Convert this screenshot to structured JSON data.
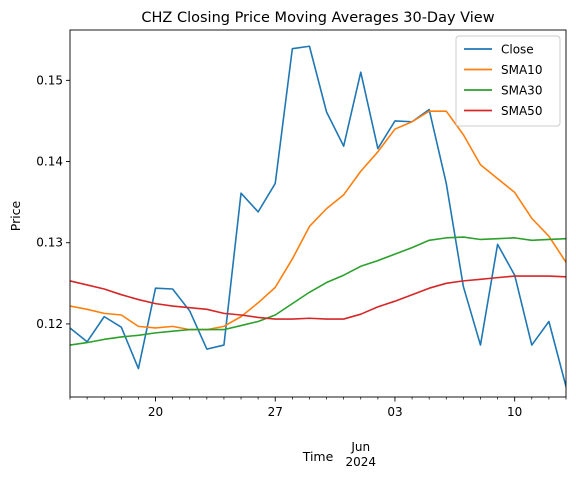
{
  "chart_data": {
    "type": "line",
    "title": "CHZ Closing Price Moving Averages 30-Day View",
    "xlabel": "Time",
    "ylabel": "Price",
    "x_range": [
      "2024-05-15",
      "2024-06-13"
    ],
    "ylim": [
      0.111,
      0.1562
    ],
    "grid": false,
    "legend_position": "top-right",
    "x_ticks_major": [
      {
        "date": "2024-05-20",
        "label": "20"
      },
      {
        "date": "2024-05-27",
        "label": "27"
      },
      {
        "date": "2024-06-03",
        "label": "03"
      },
      {
        "date": "2024-06-10",
        "label": "10"
      }
    ],
    "x_ticks_minor": [
      "2024-05-15",
      "2024-05-16",
      "2024-05-17",
      "2024-05-18",
      "2024-05-19",
      "2024-05-21",
      "2024-05-22",
      "2024-05-23",
      "2024-05-24",
      "2024-05-25",
      "2024-05-26",
      "2024-05-28",
      "2024-05-29",
      "2024-05-30",
      "2024-05-31",
      "2024-06-01",
      "2024-06-02",
      "2024-06-04",
      "2024-06-05",
      "2024-06-06",
      "2024-06-07",
      "2024-06-08",
      "2024-06-09",
      "2024-06-11",
      "2024-06-12",
      "2024-06-13"
    ],
    "x_secondary_label": {
      "date": "2024-06-01",
      "month": "Jun",
      "year": "2024"
    },
    "y_ticks": [
      0.12,
      0.13,
      0.14,
      0.15
    ],
    "y_tick_labels": [
      "0.12",
      "0.13",
      "0.14",
      "0.15"
    ],
    "x": [
      "2024-05-15",
      "2024-05-16",
      "2024-05-17",
      "2024-05-18",
      "2024-05-19",
      "2024-05-20",
      "2024-05-21",
      "2024-05-22",
      "2024-05-23",
      "2024-05-24",
      "2024-05-25",
      "2024-05-26",
      "2024-05-27",
      "2024-05-28",
      "2024-05-29",
      "2024-05-30",
      "2024-05-31",
      "2024-06-01",
      "2024-06-02",
      "2024-06-03",
      "2024-06-04",
      "2024-06-05",
      "2024-06-06",
      "2024-06-07",
      "2024-06-08",
      "2024-06-09",
      "2024-06-10",
      "2024-06-11",
      "2024-06-12",
      "2024-06-13"
    ],
    "series": [
      {
        "name": "Close",
        "color": "#1f77b4",
        "values": [
          0.1195,
          0.1178,
          0.1209,
          0.1196,
          0.1145,
          0.1244,
          0.1243,
          0.1216,
          0.1169,
          0.1174,
          0.1361,
          0.1338,
          0.1373,
          0.1539,
          0.1542,
          0.1461,
          0.1419,
          0.151,
          0.1416,
          0.145,
          0.1449,
          0.1464,
          0.1373,
          0.1246,
          0.1174,
          0.1298,
          0.126,
          0.1174,
          0.1203,
          0.1123
        ]
      },
      {
        "name": "SMA10",
        "color": "#ff7f0e",
        "values": [
          0.1222,
          0.1218,
          0.1213,
          0.1211,
          0.1197,
          0.1195,
          0.1197,
          0.1193,
          0.1193,
          0.1197,
          0.1209,
          0.1226,
          0.1245,
          0.128,
          0.132,
          0.1342,
          0.1359,
          0.1388,
          0.1412,
          0.144,
          0.1449,
          0.1462,
          0.1462,
          0.1433,
          0.1396,
          0.1379,
          0.1362,
          0.133,
          0.1308,
          0.1276
        ]
      },
      {
        "name": "SMA30",
        "color": "#2ca02c",
        "values": [
          0.1174,
          0.1177,
          0.1181,
          0.1184,
          0.1186,
          0.1189,
          0.1191,
          0.1193,
          0.1193,
          0.1193,
          0.1198,
          0.1203,
          0.1211,
          0.1225,
          0.1239,
          0.1251,
          0.126,
          0.1271,
          0.1278,
          0.1286,
          0.1294,
          0.1303,
          0.1306,
          0.1307,
          0.1304,
          0.1305,
          0.1306,
          0.1303,
          0.1304,
          0.1305
        ]
      },
      {
        "name": "SMA50",
        "color": "#d62728",
        "values": [
          0.1253,
          0.1248,
          0.1243,
          0.1236,
          0.123,
          0.1225,
          0.1222,
          0.122,
          0.1218,
          0.1213,
          0.1211,
          0.1208,
          0.1206,
          0.1206,
          0.1207,
          0.1206,
          0.1206,
          0.1212,
          0.1221,
          0.1228,
          0.1236,
          0.1244,
          0.125,
          0.1253,
          0.1255,
          0.1257,
          0.1259,
          0.1259,
          0.1259,
          0.1258
        ]
      }
    ]
  }
}
